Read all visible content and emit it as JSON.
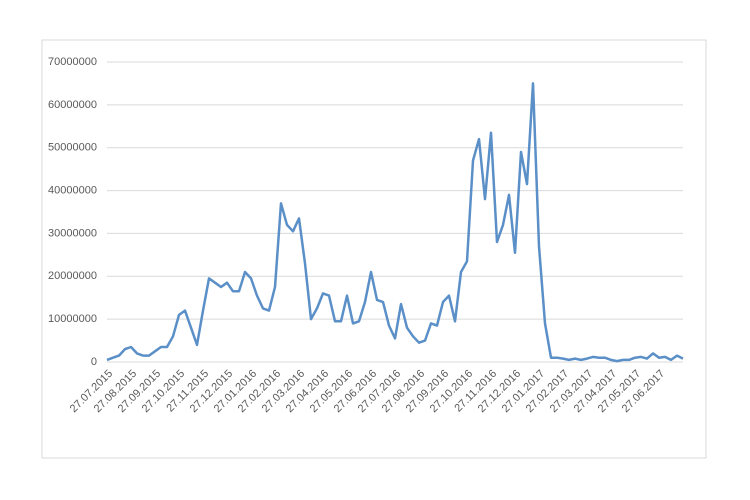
{
  "chart_data": {
    "type": "line",
    "categories": [
      "27.07.2015",
      null,
      null,
      null,
      "27.08.2015",
      null,
      null,
      null,
      "27.09.2015",
      null,
      null,
      null,
      "27.10.2015",
      null,
      null,
      null,
      "27.11.2015",
      null,
      null,
      null,
      "27.12.2015",
      null,
      null,
      null,
      "27.01.2016",
      null,
      null,
      null,
      "27.02.2016",
      null,
      null,
      null,
      "27.03.2016",
      null,
      null,
      null,
      "27.04.2016",
      null,
      null,
      null,
      "27.05.2016",
      null,
      null,
      null,
      "27.06.2016",
      null,
      null,
      null,
      "27.07.2016",
      null,
      null,
      null,
      "27.08.2016",
      null,
      null,
      null,
      "27.09.2016",
      null,
      null,
      null,
      "27.10.2016",
      null,
      null,
      null,
      "27.11.2016",
      null,
      null,
      null,
      "27.12.2016",
      null,
      null,
      null,
      "27.01.2017",
      null,
      null,
      null,
      "27.02.2017",
      null,
      null,
      null,
      "27.03.2017",
      null,
      null,
      null,
      "27.04.2017",
      null,
      null,
      null,
      "27.05.2017",
      null,
      null,
      null,
      "27.06.2017",
      null,
      null,
      null,
      null
    ],
    "series": [
      {
        "color": "#5b8fc7",
        "values": [
          500000,
          1000000,
          1500000,
          3000000,
          3500000,
          2000000,
          1500000,
          1500000,
          2500000,
          3500000,
          3500000,
          6000000,
          11000000,
          12000000,
          8000000,
          4000000,
          12000000,
          19500000,
          18500000,
          17500000,
          18500000,
          16500000,
          16500000,
          21000000,
          19500000,
          15500000,
          12500000,
          12000000,
          17500000,
          37000000,
          32000000,
          30500000,
          33500000,
          23000000,
          10000000,
          12500000,
          16000000,
          15500000,
          9500000,
          9500000,
          15500000,
          9000000,
          9500000,
          14000000,
          21000000,
          14500000,
          14000000,
          8500000,
          5500000,
          13500000,
          8000000,
          6000000,
          4500000,
          5000000,
          9000000,
          8500000,
          14000000,
          15500000,
          9500000,
          21000000,
          23500000,
          47000000,
          52000000,
          38000000,
          53500000,
          28000000,
          32000000,
          39000000,
          25500000,
          49000000,
          41500000,
          65000000,
          27000000,
          9000000,
          1000000,
          1000000,
          800000,
          500000,
          800000,
          500000,
          800000,
          1200000,
          1000000,
          1000000,
          500000,
          200000,
          500000,
          500000,
          1000000,
          1200000,
          800000,
          2000000,
          1000000,
          1200000,
          500000,
          1500000,
          800000
        ]
      }
    ],
    "ylim": [
      0,
      70000000
    ],
    "yticks": [
      0,
      10000000,
      20000000,
      30000000,
      40000000,
      50000000,
      60000000,
      70000000
    ],
    "grid": true
  }
}
